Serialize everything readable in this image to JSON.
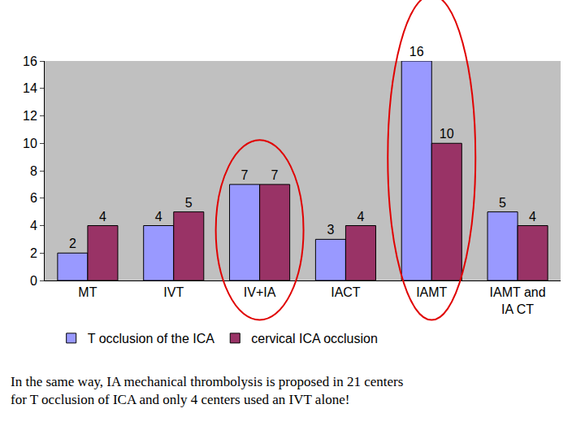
{
  "chart_data": {
    "type": "bar",
    "categories": [
      "MT",
      "IVT",
      "IV+IA",
      "IACT",
      "IAMT",
      "IAMT and IA CT"
    ],
    "series": [
      {
        "name": "T occlusion of the ICA",
        "color": "#9999ff",
        "values": [
          2,
          4,
          7,
          3,
          16,
          5
        ]
      },
      {
        "name": "cervical ICA occlusion",
        "color": "#993366",
        "values": [
          4,
          5,
          7,
          4,
          10,
          4
        ]
      }
    ],
    "ylim": [
      0,
      16
    ],
    "yticks": [
      0,
      2,
      4,
      6,
      8,
      10,
      12,
      14,
      16
    ],
    "grid": false,
    "data_labels": true,
    "legend": "bottom",
    "annotations": [
      "In the same way, IA mechanical thrombolysis is proposed in 21 centers for T occlusion of ICA and only 4 centers used an IVT alone!"
    ]
  }
}
